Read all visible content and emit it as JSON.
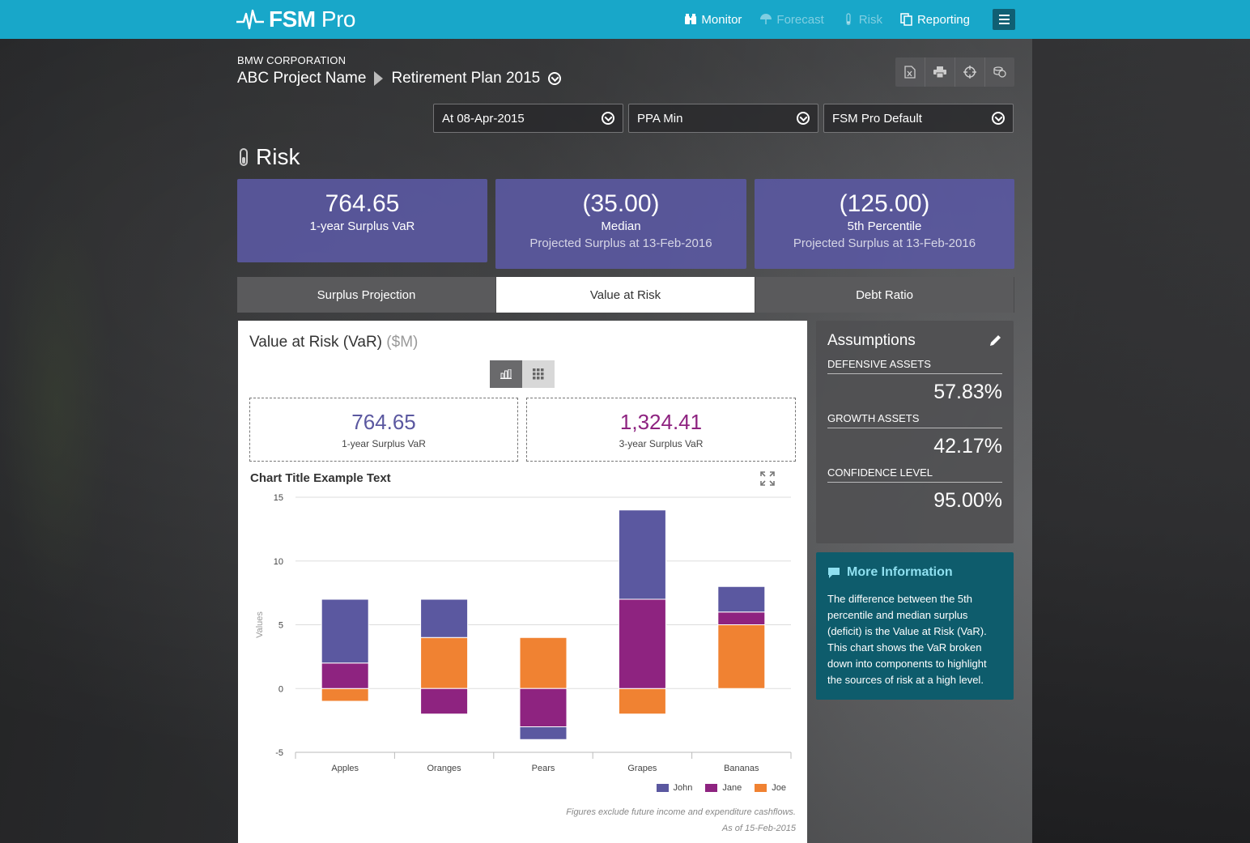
{
  "app": {
    "brand": "FSM",
    "brand_suffix": "Pro"
  },
  "nav": [
    {
      "label": "Monitor",
      "icon": "binoculars-icon",
      "dim": false
    },
    {
      "label": "Forecast",
      "icon": "umbrella-icon",
      "dim": true
    },
    {
      "label": "Risk",
      "icon": "thermometer-icon",
      "dim": true
    },
    {
      "label": "Reporting",
      "icon": "copy-icon",
      "dim": false
    }
  ],
  "header": {
    "org": "BMW CORPORATION",
    "project": "ABC Project Name",
    "plan": "Retirement Plan 2015"
  },
  "filters": {
    "date": "At 08-Apr-2015",
    "basis": "PPA Min",
    "scenario": "FSM Pro Default"
  },
  "section_title": "Risk",
  "kpis": [
    {
      "value": "764.65",
      "label": "1-year Surplus VaR",
      "sub": ""
    },
    {
      "value": "(35.00)",
      "label": "Median",
      "sub": "Projected Surplus at 13-Feb-2016"
    },
    {
      "value": "(125.00)",
      "label": "5th Percentile",
      "sub": "Projected Surplus at 13-Feb-2016"
    }
  ],
  "tabs": [
    "Surplus Projection",
    "Value at Risk",
    "Debt Ratio"
  ],
  "panel": {
    "title": "Value at Risk (VaR)",
    "unit": "($M)",
    "stats": [
      {
        "value": "764.65",
        "label": "1-year Surplus VaR",
        "color": "#5b58a0"
      },
      {
        "value": "1,324.41",
        "label": "3-year Surplus VaR",
        "color": "#8e2380"
      }
    ],
    "chart_title": "Chart Title Example Text",
    "footnote1": "Figures exclude future income and expenditure cashflows.",
    "footnote2": "As of 15-Feb-2015"
  },
  "chart_data": {
    "type": "bar",
    "stacked": true,
    "categories": [
      "Apples",
      "Oranges",
      "Pears",
      "Grapes",
      "Bananas"
    ],
    "series": [
      {
        "name": "John",
        "color": "#5b58a0",
        "values": [
          5,
          3,
          -1,
          7,
          2
        ]
      },
      {
        "name": "Jane",
        "color": "#8e2380",
        "values": [
          2,
          -2,
          -3,
          7,
          1
        ]
      },
      {
        "name": "Joe",
        "color": "#f08232",
        "values": [
          -1,
          4,
          4,
          -2,
          5
        ]
      }
    ],
    "ylabel": "Values",
    "xlabel": "",
    "ylim": [
      -5,
      15
    ],
    "yticks": [
      -5,
      0,
      5,
      10,
      15
    ],
    "grid": true,
    "legend": "bottom-right"
  },
  "assumptions": {
    "title": "Assumptions",
    "items": [
      {
        "key": "DEFENSIVE ASSETS",
        "value": "57.83%"
      },
      {
        "key": "GROWTH ASSETS",
        "value": "42.17%"
      },
      {
        "key": "CONFIDENCE LEVEL",
        "value": "95.00%"
      }
    ]
  },
  "info": {
    "title": "More Information",
    "text": "The difference between the 5th percentile and median surplus (deficit) is the Value at Risk (VaR). This chart shows the VaR broken down into components to highlight the sources of risk at a high level."
  }
}
